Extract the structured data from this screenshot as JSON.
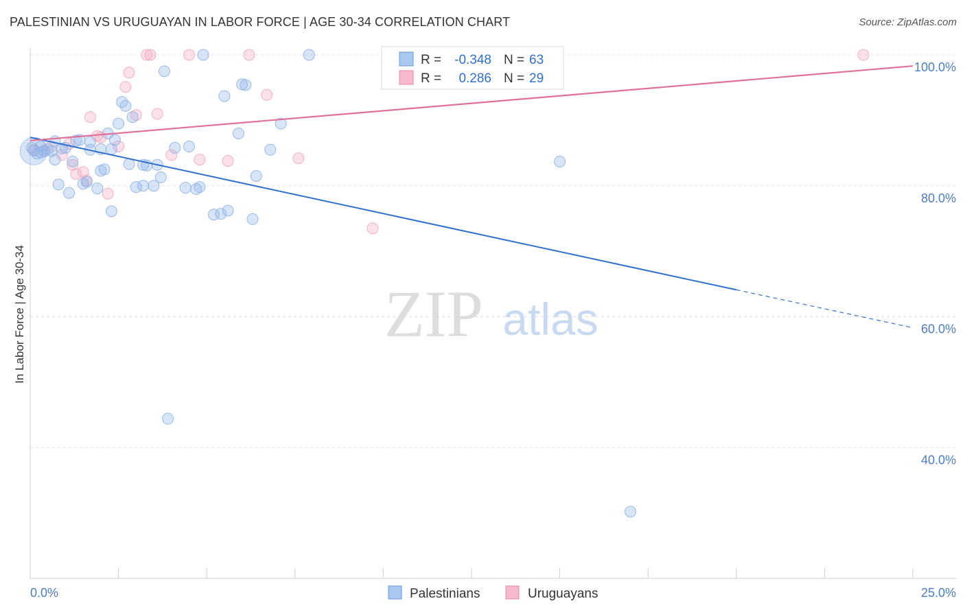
{
  "chart_data": {
    "type": "scatter",
    "title": "PALESTINIAN VS URUGUAYAN IN LABOR FORCE | AGE 30-34 CORRELATION CHART",
    "source": "Source: ZipAtlas.com",
    "xlabel": "",
    "ylabel": "In Labor Force | Age 30-34",
    "xlim": [
      0,
      25
    ],
    "ylim": [
      20,
      100
    ],
    "x_tick_labels": [
      "0.0%",
      "25.0%"
    ],
    "y_ticks": [
      40,
      60,
      80,
      100
    ],
    "y_tick_labels": [
      "40.0%",
      "60.0%",
      "80.0%",
      "100.0%"
    ],
    "grid": true,
    "watermark": {
      "zip": "ZIP",
      "atlas": "atlas"
    },
    "legend_stats": [
      {
        "r_label": "R =",
        "r_value": "-0.348",
        "n_label": "N =",
        "n_value": "63",
        "color": "#a8c8f0"
      },
      {
        "r_label": "R =",
        "r_value": "0.286",
        "n_label": "N =",
        "n_value": "29",
        "color": "#f7b8cb"
      }
    ],
    "series": [
      {
        "name": "Palestinians",
        "color": "#8fb4e8",
        "line_color": "#2f6fd0",
        "trend": {
          "x0": 0,
          "y0": 87.4,
          "x1": 20,
          "y1": 64.1,
          "x_dash_end": 25,
          "y_dash_end": 58.3
        },
        "points": [
          [
            0.1,
            85.4
          ],
          [
            0.2,
            84.9
          ],
          [
            0.3,
            85.1
          ],
          [
            0.3,
            86.0
          ],
          [
            0.4,
            85.3
          ],
          [
            0.5,
            85.6
          ],
          [
            0.6,
            85.3
          ],
          [
            0.7,
            84.0
          ],
          [
            0.7,
            86.8
          ],
          [
            0.8,
            80.2
          ],
          [
            0.9,
            85.7
          ],
          [
            1.0,
            85.8
          ],
          [
            1.1,
            78.9
          ],
          [
            1.2,
            83.7
          ],
          [
            1.3,
            86.9
          ],
          [
            1.4,
            87.0
          ],
          [
            1.5,
            80.3
          ],
          [
            1.6,
            80.6
          ],
          [
            1.7,
            85.5
          ],
          [
            1.7,
            86.7
          ],
          [
            1.9,
            79.6
          ],
          [
            2.0,
            82.3
          ],
          [
            2.0,
            85.6
          ],
          [
            2.1,
            82.5
          ],
          [
            2.2,
            88.0
          ],
          [
            2.3,
            76.1
          ],
          [
            2.3,
            85.6
          ],
          [
            2.4,
            87.0
          ],
          [
            2.5,
            89.5
          ],
          [
            2.6,
            92.8
          ],
          [
            2.7,
            92.2
          ],
          [
            2.8,
            83.3
          ],
          [
            2.9,
            90.5
          ],
          [
            3.0,
            79.8
          ],
          [
            3.2,
            80.0
          ],
          [
            3.2,
            83.2
          ],
          [
            3.3,
            83.1
          ],
          [
            3.5,
            80.0
          ],
          [
            3.6,
            83.2
          ],
          [
            3.7,
            81.3
          ],
          [
            3.8,
            97.5
          ],
          [
            3.9,
            44.4
          ],
          [
            4.1,
            85.8
          ],
          [
            4.4,
            79.7
          ],
          [
            4.5,
            86.0
          ],
          [
            4.7,
            79.5
          ],
          [
            4.8,
            79.8
          ],
          [
            4.9,
            100
          ],
          [
            5.2,
            75.6
          ],
          [
            5.4,
            75.7
          ],
          [
            5.5,
            93.7
          ],
          [
            5.6,
            76.2
          ],
          [
            5.9,
            88.0
          ],
          [
            6.0,
            95.5
          ],
          [
            6.1,
            95.4
          ],
          [
            6.3,
            74.9
          ],
          [
            6.4,
            81.5
          ],
          [
            6.8,
            85.5
          ],
          [
            7.1,
            89.5
          ],
          [
            7.9,
            100
          ],
          [
            15.0,
            83.7
          ],
          [
            17.0,
            30.2
          ],
          [
            0.05,
            85.8
          ]
        ]
      },
      {
        "name": "Uruguayans",
        "color": "#f4a9c0",
        "line_color": "#e0709a",
        "trend": {
          "x0": 0,
          "y0": 86.9,
          "x1": 25,
          "y1": 98.3
        },
        "points": [
          [
            0.1,
            85.5
          ],
          [
            0.4,
            85.4
          ],
          [
            0.6,
            86.0
          ],
          [
            0.9,
            84.7
          ],
          [
            1.1,
            86.4
          ],
          [
            1.2,
            83.2
          ],
          [
            1.3,
            81.8
          ],
          [
            1.5,
            82.1
          ],
          [
            1.6,
            80.8
          ],
          [
            1.7,
            90.5
          ],
          [
            1.9,
            87.6
          ],
          [
            2.0,
            87.4
          ],
          [
            2.2,
            78.8
          ],
          [
            2.5,
            86.0
          ],
          [
            2.7,
            95.1
          ],
          [
            2.8,
            97.3
          ],
          [
            3.0,
            90.8
          ],
          [
            3.3,
            100
          ],
          [
            3.4,
            100
          ],
          [
            3.6,
            91.0
          ],
          [
            4.0,
            84.7
          ],
          [
            4.5,
            100
          ],
          [
            4.8,
            84.0
          ],
          [
            5.6,
            83.8
          ],
          [
            6.2,
            100
          ],
          [
            6.7,
            93.9
          ],
          [
            7.6,
            84.2
          ],
          [
            9.7,
            73.5
          ],
          [
            23.6,
            100
          ]
        ]
      }
    ]
  }
}
